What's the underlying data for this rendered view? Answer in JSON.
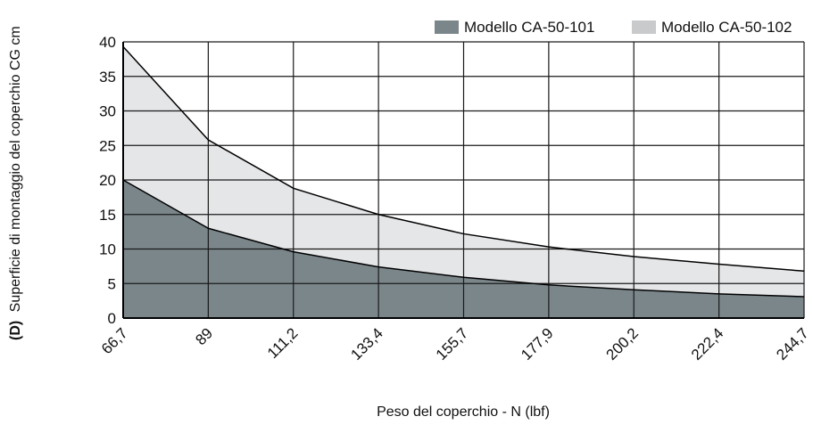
{
  "chart_data": {
    "type": "area",
    "x": [
      "66,7",
      "89",
      "111,2",
      "133,4",
      "155,7",
      "177,9",
      "200,2",
      "222,4",
      "244,7"
    ],
    "xlabel": "Peso del coperchio - N (lbf)",
    "ylabel_prefix": "(D)",
    "ylabel": "Superficie di montaggio del coperchio CG cm",
    "ylim": [
      0,
      40
    ],
    "yticks": [
      0,
      5,
      10,
      15,
      20,
      25,
      30,
      35,
      40
    ],
    "grid": true,
    "legend_position": "top-right",
    "series": [
      {
        "name": "Modello CA-50-101",
        "color": "#7b868b",
        "values": [
          20,
          13,
          9.6,
          7.4,
          5.9,
          4.8,
          4.1,
          3.5,
          3.1
        ]
      },
      {
        "name": "Modello CA-50-102",
        "color": "#e5e6e8",
        "legend_color": "#c8cacc",
        "values": [
          39.3,
          25.8,
          18.8,
          15,
          12.2,
          10.3,
          8.9,
          7.8,
          6.8
        ]
      }
    ]
  }
}
